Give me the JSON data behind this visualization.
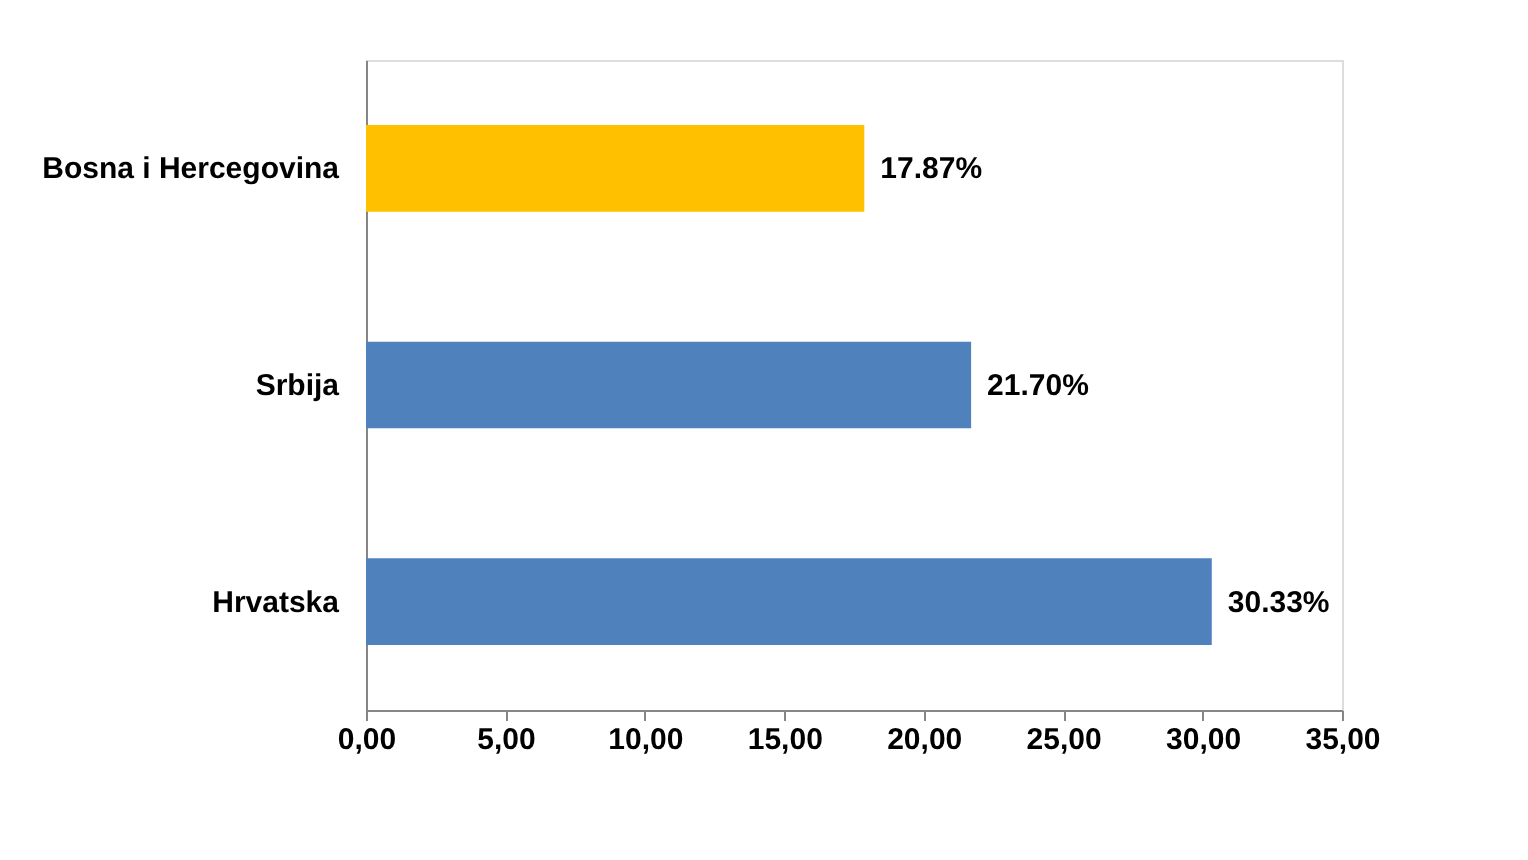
{
  "chart_data": {
    "type": "bar",
    "orientation": "horizontal",
    "categories": [
      "Bosna i Hercegovina",
      "Srbija",
      "Hrvatska"
    ],
    "values": [
      17.87,
      21.7,
      30.33
    ],
    "colors": [
      "#ffc000",
      "#4f81bd",
      "#4f81bd"
    ],
    "value_labels": [
      "17.87%",
      "21.70%",
      "30.33%"
    ],
    "xlim": [
      0,
      35
    ],
    "xticks": [
      {
        "value": 0,
        "label": "0,00"
      },
      {
        "value": 5,
        "label": "5,00"
      },
      {
        "value": 10,
        "label": "10,00"
      },
      {
        "value": 15,
        "label": "15,00"
      },
      {
        "value": 20,
        "label": "20,00"
      },
      {
        "value": 25,
        "label": "25,00"
      },
      {
        "value": 30,
        "label": "30,00"
      },
      {
        "value": 35,
        "label": "35,00"
      }
    ],
    "grid": false
  }
}
